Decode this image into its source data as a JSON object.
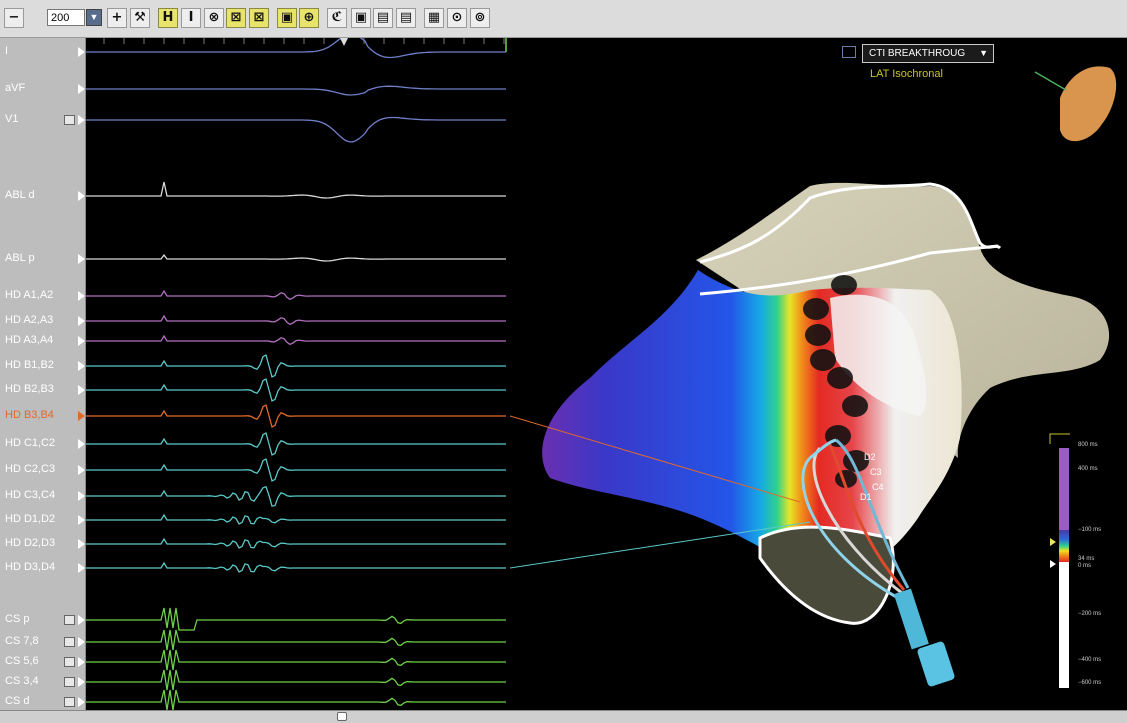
{
  "toolbar": {
    "zoom_value": "200",
    "buttons": [
      "−",
      "+",
      "⚒",
      "H",
      "I",
      "⊗",
      "⊠",
      "⊠",
      "▣",
      "⊕",
      "ℭ",
      "▣",
      "▤",
      "▤",
      "▦",
      "⊙",
      "⊚"
    ]
  },
  "channels": [
    {
      "label": "I",
      "color": "#6f7fc8"
    },
    {
      "label": "aVF",
      "color": "#6f7fc8"
    },
    {
      "label": "V1",
      "color": "#6f7fc8"
    },
    {
      "label": "ABL d",
      "color": "#d8d8d8"
    },
    {
      "label": "ABL p",
      "color": "#d8d8d8"
    },
    {
      "label": "HD A1,A2",
      "color": "#b270c0"
    },
    {
      "label": "HD A2,A3",
      "color": "#b270c0"
    },
    {
      "label": "HD A3,A4",
      "color": "#b270c0"
    },
    {
      "label": "HD B1,B2",
      "color": "#5bc8c8"
    },
    {
      "label": "HD B2,B3",
      "color": "#5bc8c8"
    },
    {
      "label": "HD B3,B4",
      "color": "#e06a2b"
    },
    {
      "label": "HD C1,C2",
      "color": "#5bc8c8"
    },
    {
      "label": "HD C2,C3",
      "color": "#5bc8c8"
    },
    {
      "label": "HD C3,C4",
      "color": "#5bc8c8"
    },
    {
      "label": "HD D1,D2",
      "color": "#5bc8c8"
    },
    {
      "label": "HD D2,D3",
      "color": "#5bc8c8"
    },
    {
      "label": "HD D3,D4",
      "color": "#5bc8c8"
    },
    {
      "label": "CS p",
      "color": "#6fd04a"
    },
    {
      "label": "CS 7,8",
      "color": "#6fd04a"
    },
    {
      "label": "CS 5,6",
      "color": "#6fd04a"
    },
    {
      "label": "CS 3,4",
      "color": "#6fd04a"
    },
    {
      "label": "CS d",
      "color": "#6fd04a"
    }
  ],
  "map": {
    "menu_value": "CTI BREAKTHROUG",
    "map_type": "LAT Isochronal",
    "scale_labels": [
      "800 ms",
      "400 ms",
      "−100 ms",
      "34 ms",
      "0 ms",
      "−200 ms",
      "−400 ms",
      "−600 ms"
    ],
    "catheter_labels": [
      "D2",
      "C3",
      "C4",
      "D1"
    ]
  },
  "colors": {
    "toolbar_bg": "#dcdcdc",
    "highlight": "#e8e36a",
    "map_text": "#c8c42a",
    "active_channel": "#e06a2b"
  }
}
